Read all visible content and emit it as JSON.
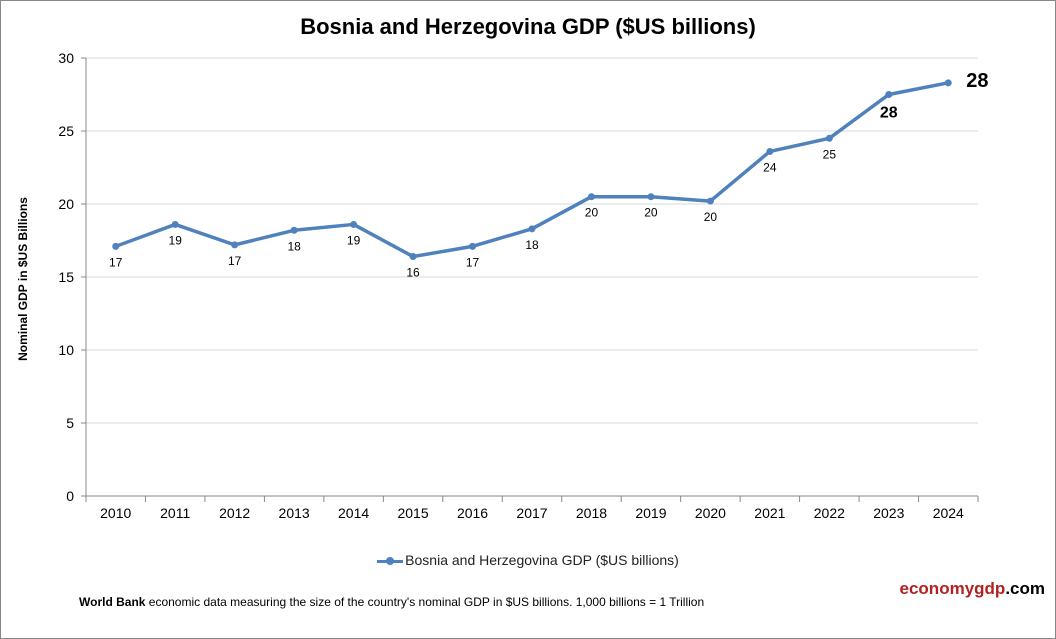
{
  "chart_data": {
    "type": "line",
    "title": "Bosnia and Herzegovina GDP ($US billions)",
    "ylabel": "Nominal GDP in $US  Billions",
    "xlabel": "",
    "categories": [
      "2010",
      "2011",
      "2012",
      "2013",
      "2014",
      "2015",
      "2016",
      "2017",
      "2018",
      "2019",
      "2020",
      "2021",
      "2022",
      "2023",
      "2024"
    ],
    "series": [
      {
        "name": "Bosnia and Herzegovina GDP ($US billions)",
        "values": [
          17.1,
          18.6,
          17.2,
          18.2,
          18.6,
          16.4,
          17.1,
          18.3,
          20.5,
          20.5,
          20.2,
          23.6,
          24.5,
          27.5,
          28.3
        ],
        "labels": [
          "17",
          "19",
          "17",
          "18",
          "19",
          "16",
          "17",
          "18",
          "20",
          "20",
          "20",
          "24",
          "25",
          "28",
          "28"
        ],
        "color": "#4f81bd"
      }
    ],
    "ylim": [
      0,
      30
    ],
    "yticks": [
      "0",
      "5",
      "10",
      "15",
      "20",
      "25",
      "30"
    ],
    "grid": true,
    "legend": "bottom"
  },
  "footer": {
    "source_bold": "World Bank",
    "text": " economic data  measuring the size of the country's nominal GDP in $US billions. 1,000 billions = 1 Trillion"
  },
  "logo": {
    "part1": "economygdp",
    "part2": ".com",
    "color": "#b22222"
  }
}
